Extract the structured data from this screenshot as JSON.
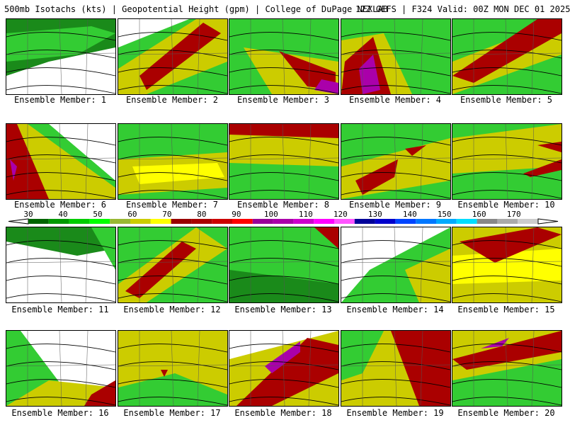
{
  "header": {
    "left": "500mb Isotachs (kts) | Geopotential Height (gpm) | College of DuPage NEXLAB",
    "right": "12Z GEFS | F324 Valid: 00Z MON DEC 01 2025"
  },
  "colorbar": {
    "labels": [
      "30",
      "40",
      "50",
      "60",
      "70",
      "80",
      "90",
      "100",
      "110",
      "120",
      "130",
      "140",
      "150",
      "160",
      "170"
    ],
    "colors": [
      "#006400",
      "#009900",
      "#00cc00",
      "#00ff00",
      "#99b833",
      "#cccc00",
      "#ffff00",
      "#990000",
      "#aa0000",
      "#cc0000",
      "#ff0000",
      "#990099",
      "#aa00aa",
      "#cc00cc",
      "#ff00ff",
      "#ff55ff",
      "#000099",
      "#0000cc",
      "#0044ff",
      "#0077ff",
      "#00aaff",
      "#00ddff",
      "#888888",
      "#aaaaaa",
      "#cccccc"
    ]
  },
  "members": [
    {
      "label": "Ensemble Member: 1"
    },
    {
      "label": "Ensemble Member: 2"
    },
    {
      "label": "Ensemble Member: 3"
    },
    {
      "label": "Ensemble Member: 4"
    },
    {
      "label": "Ensemble Member: 5"
    },
    {
      "label": "Ensemble Member: 6"
    },
    {
      "label": "Ensemble Member: 7"
    },
    {
      "label": "Ensemble Member: 8"
    },
    {
      "label": "Ensemble Member: 9"
    },
    {
      "label": "Ensemble Member: 10"
    },
    {
      "label": "Ensemble Member: 11"
    },
    {
      "label": "Ensemble Member: 12"
    },
    {
      "label": "Ensemble Member: 13"
    },
    {
      "label": "Ensemble Member: 14"
    },
    {
      "label": "Ensemble Member: 15"
    },
    {
      "label": "Ensemble Member: 16"
    },
    {
      "label": "Ensemble Member: 17"
    },
    {
      "label": "Ensemble Member: 18"
    },
    {
      "label": "Ensemble Member: 19"
    },
    {
      "label": "Ensemble Member: 20"
    }
  ]
}
